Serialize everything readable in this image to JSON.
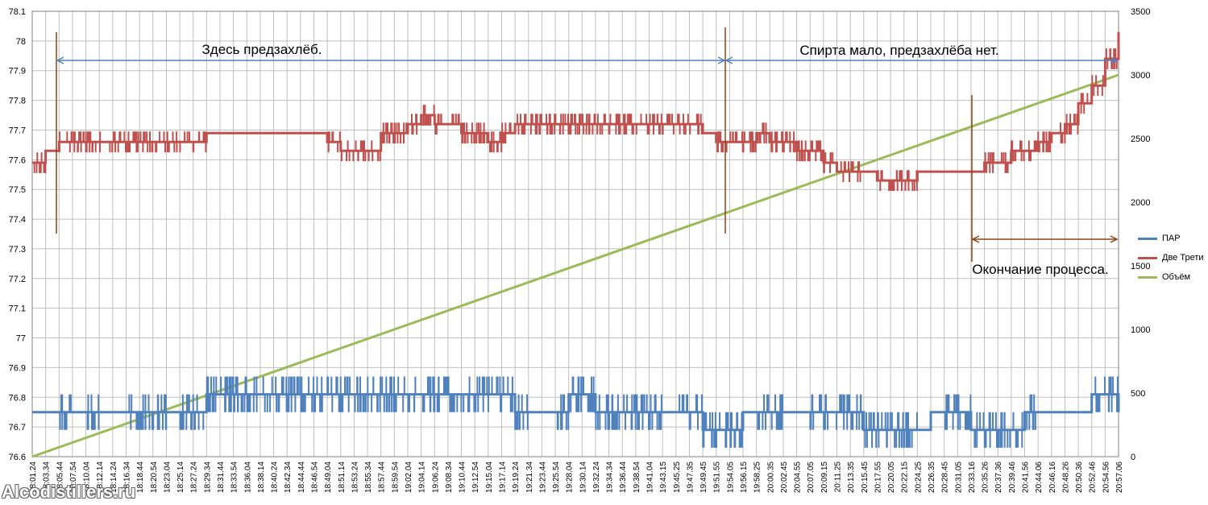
{
  "chart_data": {
    "type": "line",
    "title": "",
    "y_left": {
      "ylim": [
        76.6,
        78.1
      ],
      "ticks": [
        "76.6",
        "76.7",
        "76.8",
        "76.9",
        "77",
        "77.1",
        "77.2",
        "77.3",
        "77.4",
        "77.5",
        "77.6",
        "77.7",
        "77.8",
        "77.9",
        "78",
        "78.1"
      ]
    },
    "y_right": {
      "ylim": [
        0,
        3500
      ],
      "ticks": [
        "0",
        "500",
        "1000",
        "1500",
        "2000",
        "2500",
        "3000",
        "3500"
      ]
    },
    "x_ticks": [
      "18:01.24",
      "18:03.34",
      "18:05.44",
      "18:07.54",
      "18:10.04",
      "18:12.14",
      "18:14.24",
      "18:16.34",
      "18:18.44",
      "18:20.54",
      "18:23.04",
      "18:25.14",
      "18:27.24",
      "18:29.34",
      "18:31.44",
      "18:33.54",
      "18:36.04",
      "18:38.14",
      "18:40.24",
      "18:42.34",
      "18:44.44",
      "18:46.54",
      "18:49.04",
      "18:51.14",
      "18:53.24",
      "18:55.34",
      "18:57.44",
      "18:59.54",
      "19:02.04",
      "19:04.14",
      "19:06.24",
      "19:08.34",
      "19:10.44",
      "19:12.54",
      "19:15.04",
      "19:17.14",
      "19:19.24",
      "19:21.34",
      "19:23.44",
      "19:25.54",
      "19:28.04",
      "19:30.14",
      "19:32.24",
      "19:34.34",
      "19:36.44",
      "19:38.54",
      "19:41.04",
      "19:43.15",
      "19:45.25",
      "19:47.35",
      "19:49.45",
      "19:51.55",
      "19:54.05",
      "19:56.15",
      "19:58.25",
      "20:00.35",
      "20:02.45",
      "20:04.55",
      "20:07.05",
      "20:09.15",
      "20:11.25",
      "20:13.35",
      "20:15.45",
      "20:17.55",
      "20:20.05",
      "20:22.15",
      "20:24.25",
      "20:26.35",
      "20:28.45",
      "20:31.05",
      "20:33.16",
      "20:35.26",
      "20:37.36",
      "20:39.46",
      "20:41.56",
      "20:44.06",
      "20:46.16",
      "20:48.26",
      "20:50.36",
      "20:52.46",
      "20:54.56",
      "20:57.06"
    ],
    "grid": true,
    "legend_position": "right",
    "series": [
      {
        "name": "ПАР",
        "axis": "left",
        "color": "#4F81BD",
        "values": [
          76.75,
          76.75,
          76.75,
          76.75,
          76.75,
          76.75,
          76.75,
          76.75,
          76.75,
          76.75,
          76.75,
          76.75,
          76.75,
          76.81,
          76.81,
          76.81,
          76.81,
          76.81,
          76.81,
          76.81,
          76.81,
          76.81,
          76.81,
          76.81,
          76.81,
          76.81,
          76.81,
          76.81,
          76.81,
          76.81,
          76.81,
          76.81,
          76.81,
          76.81,
          76.81,
          76.81,
          76.75,
          76.75,
          76.75,
          76.75,
          76.81,
          76.81,
          76.75,
          76.75,
          76.75,
          76.75,
          76.75,
          76.75,
          76.75,
          76.75,
          76.69,
          76.69,
          76.69,
          76.75,
          76.75,
          76.75,
          76.75,
          76.75,
          76.75,
          76.75,
          76.75,
          76.75,
          76.69,
          76.69,
          76.69,
          76.69,
          76.69,
          76.75,
          76.75,
          76.75,
          76.69,
          76.69,
          76.69,
          76.69,
          76.75,
          76.75,
          76.75,
          76.75,
          76.75,
          76.81,
          76.81,
          76.75
        ],
        "noise": [
          0,
          0,
          1,
          0,
          1,
          0,
          0,
          1,
          1,
          1,
          0,
          1,
          1,
          1,
          1,
          1,
          1,
          1,
          1,
          1,
          1,
          1,
          1,
          1,
          1,
          1,
          1,
          1,
          1,
          1,
          1,
          1,
          1,
          1,
          1,
          1,
          1,
          0,
          0,
          1,
          1,
          1,
          1,
          1,
          1,
          1,
          1,
          0,
          1,
          1,
          1,
          1,
          1,
          0,
          1,
          1,
          0,
          0,
          1,
          1,
          1,
          1,
          1,
          1,
          1,
          1,
          0,
          0,
          1,
          1,
          1,
          1,
          1,
          1,
          1,
          0,
          0,
          0,
          0,
          1,
          1,
          0
        ]
      },
      {
        "name": "Две Трети",
        "axis": "left",
        "color": "#C0504D",
        "values": [
          77.59,
          77.63,
          77.66,
          77.66,
          77.66,
          77.66,
          77.66,
          77.66,
          77.66,
          77.66,
          77.66,
          77.66,
          77.66,
          77.69,
          77.69,
          77.69,
          77.69,
          77.69,
          77.69,
          77.69,
          77.69,
          77.69,
          77.66,
          77.63,
          77.63,
          77.63,
          77.69,
          77.69,
          77.72,
          77.75,
          77.72,
          77.72,
          77.69,
          77.69,
          77.66,
          77.69,
          77.72,
          77.72,
          77.72,
          77.72,
          77.72,
          77.72,
          77.72,
          77.72,
          77.72,
          77.72,
          77.72,
          77.72,
          77.72,
          77.72,
          77.69,
          77.66,
          77.66,
          77.66,
          77.69,
          77.66,
          77.66,
          77.63,
          77.63,
          77.59,
          77.56,
          77.56,
          77.56,
          77.53,
          77.53,
          77.53,
          77.56,
          77.56,
          77.56,
          77.56,
          77.56,
          77.59,
          77.59,
          77.63,
          77.63,
          77.66,
          77.69,
          77.72,
          77.79,
          77.85,
          77.94,
          78.03
        ],
        "noise": [
          1,
          0,
          1,
          1,
          1,
          1,
          1,
          1,
          1,
          1,
          1,
          1,
          1,
          0,
          0,
          0,
          0,
          0,
          0,
          0,
          0,
          0,
          1,
          1,
          1,
          1,
          1,
          1,
          1,
          1,
          1,
          1,
          1,
          1,
          1,
          1,
          1,
          1,
          1,
          1,
          1,
          1,
          1,
          1,
          1,
          1,
          1,
          1,
          1,
          1,
          0,
          1,
          1,
          1,
          1,
          1,
          1,
          1,
          1,
          1,
          1,
          1,
          0,
          1,
          1,
          1,
          0,
          0,
          0,
          0,
          0,
          1,
          1,
          1,
          1,
          1,
          1,
          1,
          1,
          1,
          1,
          1
        ]
      },
      {
        "name": "Объём",
        "axis": "right",
        "color": "#9BBB59",
        "values": [
          0,
          3000
        ]
      }
    ],
    "annotations": [
      {
        "text": "Здесь предзахлёб."
      },
      {
        "text": "Спирта  мало, предзахлёба  нет."
      },
      {
        "text": "Окончание  процесса."
      }
    ]
  },
  "watermark": "Alcodistillers.ru"
}
